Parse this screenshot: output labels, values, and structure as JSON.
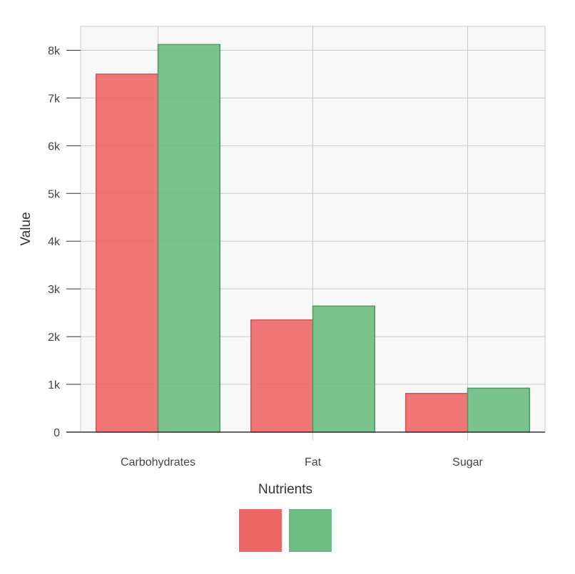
{
  "chart_data": {
    "type": "bar",
    "categories": [
      "Carbohydrates",
      "Fat",
      "Sugar"
    ],
    "series": [
      {
        "values": [
          7500,
          2350,
          810
        ],
        "color": "#ee6666"
      },
      {
        "values": [
          8120,
          2640,
          920
        ],
        "color": "#6bbd80"
      }
    ],
    "xlabel": "Nutrients",
    "ylabel": "Value",
    "ylim": [
      0,
      8500
    ],
    "yticks": [
      0,
      1000,
      2000,
      3000,
      4000,
      5000,
      6000,
      7000,
      8000
    ],
    "ytick_labels": [
      "0",
      "1k",
      "2k",
      "3k",
      "4k",
      "5k",
      "6k",
      "7k",
      "8k"
    ],
    "grid": true,
    "legend_position": "bottom-center",
    "plot_background": "#f8f8f8"
  }
}
